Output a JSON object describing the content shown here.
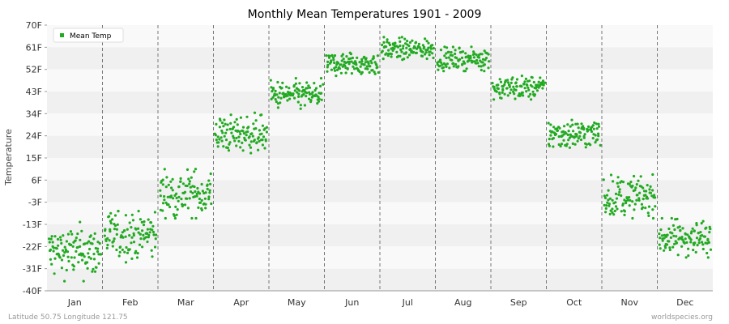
{
  "chart_data": {
    "type": "scatter",
    "title": "Monthly Mean Temperatures 1901 - 2009",
    "ylabel": "Temperature",
    "xlabel": "",
    "categories": [
      "Jan",
      "Feb",
      "Mar",
      "Apr",
      "May",
      "Jun",
      "Jul",
      "Aug",
      "Sep",
      "Oct",
      "Nov",
      "Dec"
    ],
    "y_ticks": [
      "70F",
      "61F",
      "52F",
      "43F",
      "34F",
      "24F",
      "15F",
      "6F",
      "-3F",
      "-13F",
      "-22F",
      "-31F",
      "-40F"
    ],
    "ylim": [
      -40,
      70
    ],
    "grid": "alternating horizontal bands; dashed vertical month separators",
    "legend_position": "top-left",
    "series": [
      {
        "name": "Mean Temp",
        "color": "#22aa22",
        "marker": "circle",
        "years": [
          1901,
          2009
        ],
        "monthly_band": [
          {
            "month": "Jan",
            "low": -36,
            "high": -11,
            "center": -24
          },
          {
            "month": "Feb",
            "low": -30,
            "high": -7,
            "center": -17
          },
          {
            "month": "Mar",
            "low": -10,
            "high": 13,
            "center": 0
          },
          {
            "month": "Apr",
            "low": 17,
            "high": 34,
            "center": 25
          },
          {
            "month": "May",
            "low": 35,
            "high": 48,
            "center": 41
          },
          {
            "month": "Jun",
            "low": 48,
            "high": 59,
            "center": 54
          },
          {
            "month": "Jul",
            "low": 55,
            "high": 65,
            "center": 60
          },
          {
            "month": "Aug",
            "low": 51,
            "high": 61,
            "center": 56
          },
          {
            "month": "Sep",
            "low": 38,
            "high": 49,
            "center": 44
          },
          {
            "month": "Oct",
            "low": 17,
            "high": 31,
            "center": 25
          },
          {
            "month": "Nov",
            "low": -10,
            "high": 9,
            "center": -1
          },
          {
            "month": "Dec",
            "low": -27,
            "high": -10,
            "center": -18
          }
        ]
      }
    ]
  },
  "footer": {
    "left": "Latitude 50.75 Longitude 121.75",
    "right": "worldspecies.org"
  }
}
